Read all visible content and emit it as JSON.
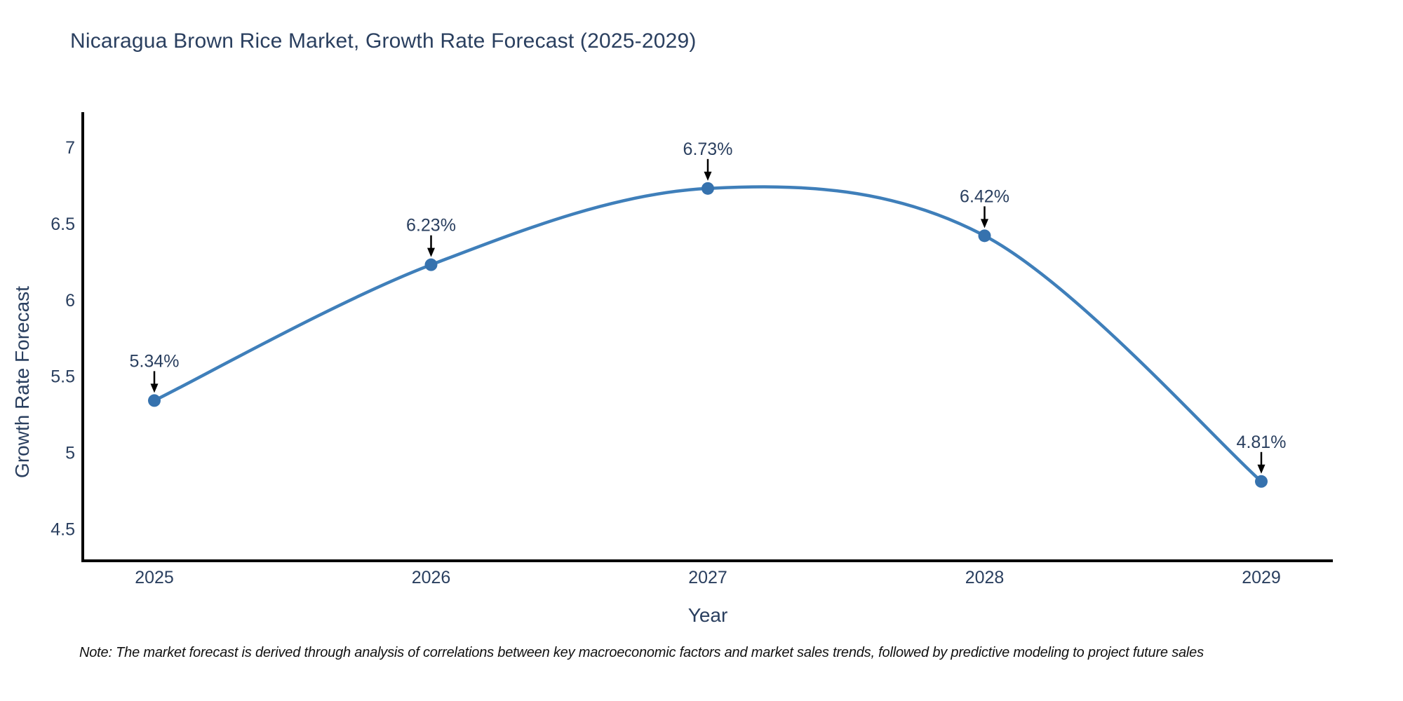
{
  "title": "Nicaragua Brown Rice Market, Growth Rate Forecast (2025-2029)",
  "note": "Note: The market forecast is derived through analysis of correlations between key macroeconomic factors and market sales trends, followed by predictive modeling to project future sales",
  "chart_data": {
    "type": "line",
    "title": "Nicaragua Brown Rice Market, Growth Rate Forecast (2025-2029)",
    "xlabel": "Year",
    "ylabel": "Growth Rate Forecast",
    "x": [
      2025,
      2026,
      2027,
      2028,
      2029
    ],
    "values": [
      5.34,
      6.23,
      6.73,
      6.42,
      4.81
    ],
    "point_labels": [
      "5.34%",
      "6.23%",
      "6.73%",
      "6.42%",
      "4.81%"
    ],
    "yticks": [
      4.5,
      5,
      5.5,
      6,
      6.5,
      7
    ],
    "ylim": [
      4.29,
      7.23
    ],
    "grid": false,
    "line_shape": "spline",
    "legend": "none",
    "colors": {
      "line": "#3f7fba",
      "marker": "#3672ae",
      "axis": "#000000",
      "text": "#2a3f5f",
      "annotation_text": "#2a3f5f",
      "arrow": "#000000",
      "background": "#ffffff"
    }
  }
}
